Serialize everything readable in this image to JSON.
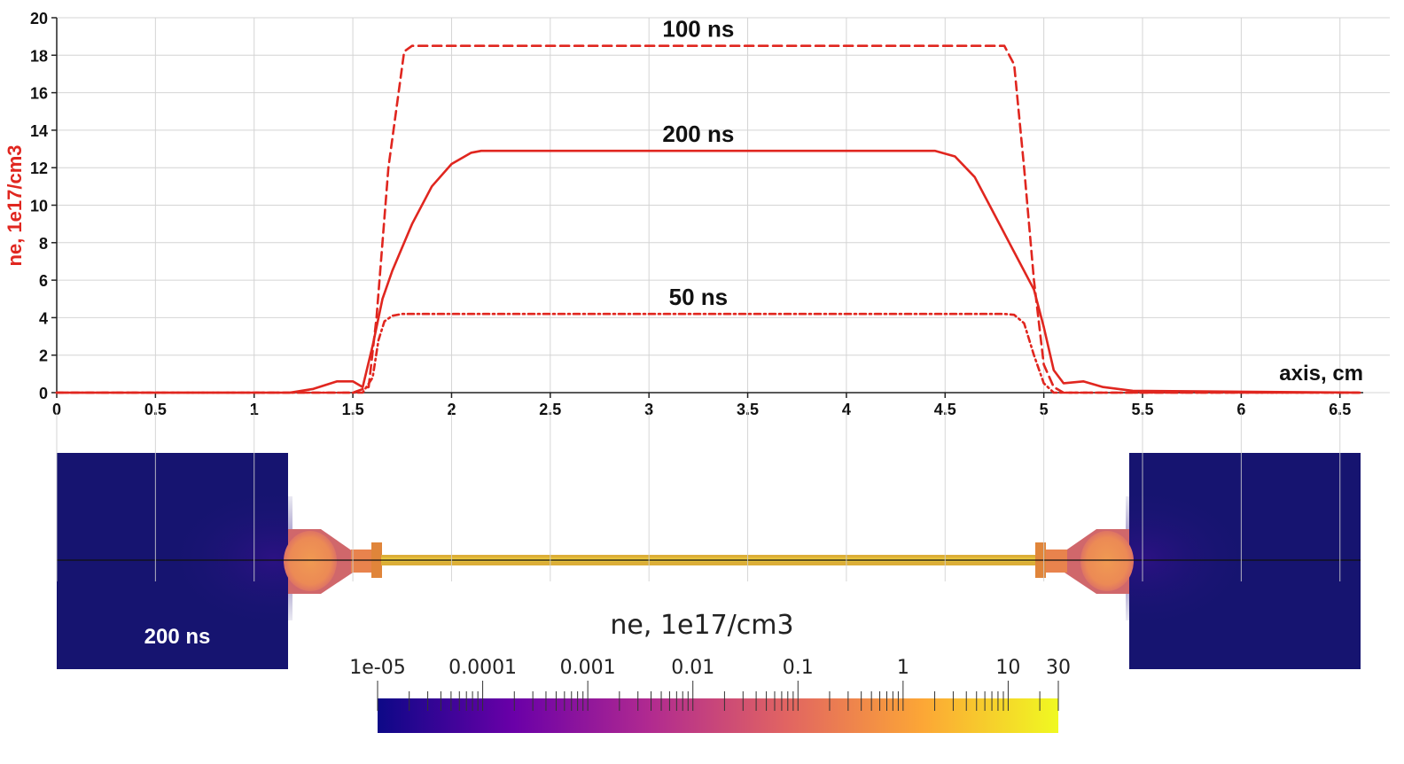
{
  "chart_data": [
    {
      "type": "line",
      "ylabel": "ne, 1e17/cm3",
      "xlabel": "axis, cm",
      "xlim": [
        0,
        6.6
      ],
      "ylim": [
        0,
        20
      ],
      "x_ticks": [
        "0",
        "0.5",
        "1",
        "1.5",
        "2",
        "2.5",
        "3",
        "3.5",
        "4",
        "4.5",
        "5",
        "5.5",
        "6",
        "6.5"
      ],
      "y_ticks": [
        "0",
        "2",
        "4",
        "6",
        "8",
        "10",
        "12",
        "14",
        "16",
        "18",
        "20"
      ],
      "grid": true,
      "series": [
        {
          "name": "100 ns",
          "style": "dashed",
          "color": "#e0261f",
          "x": [
            0,
            1.5,
            1.58,
            1.62,
            1.68,
            1.76,
            1.8,
            2.0,
            3.0,
            4.0,
            4.8,
            4.85,
            4.9,
            4.95,
            5.0,
            5.05,
            5.1,
            6.6
          ],
          "y": [
            0,
            0,
            0.3,
            4,
            12,
            18.2,
            18.5,
            18.5,
            18.5,
            18.5,
            18.5,
            17.5,
            12,
            6,
            1.5,
            0.3,
            0,
            0
          ]
        },
        {
          "name": "200 ns",
          "style": "solid",
          "color": "#e0261f",
          "x": [
            0,
            1.18,
            1.3,
            1.42,
            1.5,
            1.55,
            1.6,
            1.65,
            1.7,
            1.8,
            1.9,
            2.0,
            2.1,
            2.15,
            2.5,
            3.0,
            3.5,
            4.0,
            4.45,
            4.55,
            4.65,
            4.75,
            4.85,
            4.95,
            5.0,
            5.05,
            5.1,
            5.2,
            5.3,
            5.45,
            6.6
          ],
          "y": [
            0,
            0,
            0.2,
            0.6,
            0.6,
            0.3,
            2.5,
            5,
            6.5,
            9,
            11,
            12.2,
            12.8,
            12.9,
            12.9,
            12.9,
            12.9,
            12.9,
            12.9,
            12.6,
            11.5,
            9.5,
            7.5,
            5.5,
            3.5,
            1.2,
            0.5,
            0.6,
            0.3,
            0.1,
            0
          ]
        },
        {
          "name": "50 ns",
          "style": "dashdot",
          "color": "#e0261f",
          "x": [
            0,
            1.55,
            1.6,
            1.63,
            1.66,
            1.7,
            1.75,
            4.8,
            4.85,
            4.9,
            4.95,
            5.0,
            5.05,
            6.6
          ],
          "y": [
            0,
            0,
            0.8,
            2.8,
            3.8,
            4.1,
            4.2,
            4.2,
            4.15,
            3.7,
            2.0,
            0.5,
            0,
            0
          ]
        }
      ]
    },
    {
      "type": "heatmap",
      "colorbar_title": "ne, 1e17/cm3",
      "time_label": "200 ns",
      "colorbar_ticks": [
        "1e-05",
        "0.0001",
        "0.001",
        "0.01",
        "0.1",
        "1",
        "10",
        "30"
      ],
      "scale": "log",
      "range": [
        1e-05,
        30
      ],
      "colormap": [
        "#0d0887",
        "#6a00a8",
        "#b12a90",
        "#e16462",
        "#fca636",
        "#f0f921"
      ]
    }
  ]
}
